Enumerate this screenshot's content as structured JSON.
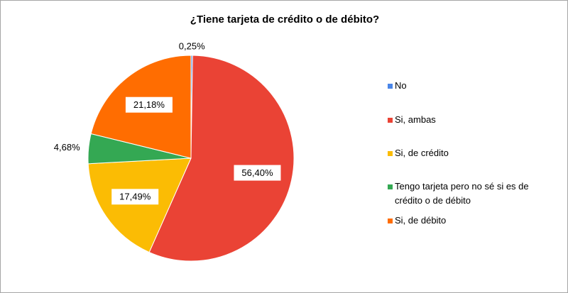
{
  "chart_data": {
    "type": "pie",
    "title": "¿Tiene tarjeta de crédito o de débito?",
    "categories": [
      "No",
      "Si, ambas",
      "Si, de crédito",
      "Tengo tarjeta pero no sé si es de crédito o de débito",
      "Si, de débito"
    ],
    "values": [
      0.25,
      56.4,
      17.49,
      4.68,
      21.18
    ],
    "value_labels": [
      "0,25%",
      "56,40%",
      "17,49%",
      "4,68%",
      "21,18%"
    ],
    "colors": [
      "#4a86e8",
      "#ea4335",
      "#fbbc04",
      "#34a853",
      "#ff6d01"
    ],
    "legend": "right"
  }
}
